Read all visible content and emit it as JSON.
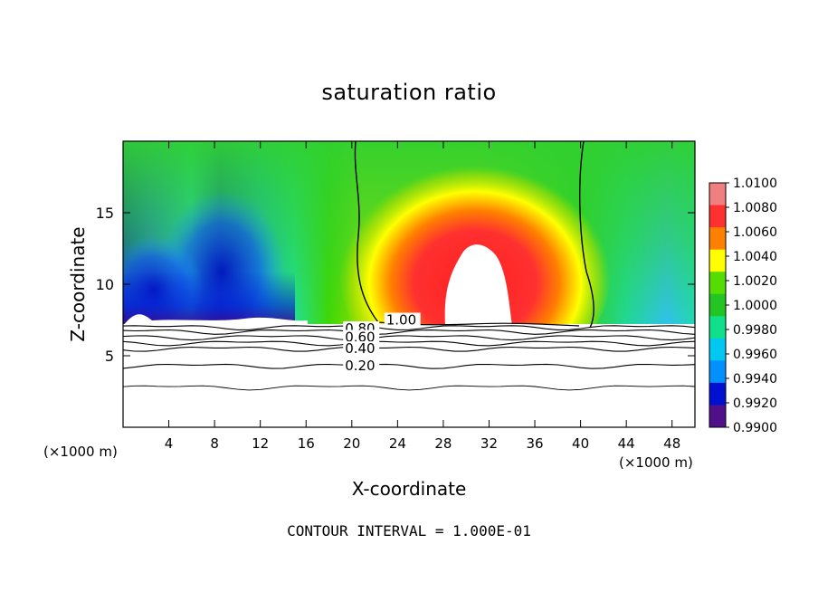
{
  "chart_data": {
    "type": "heatmap",
    "title": "saturation ratio",
    "xlabel": "X-coordinate",
    "ylabel": "Z-coordinate",
    "x_unit": "(×1000 m)",
    "xlim": [
      0,
      50
    ],
    "ylim": [
      0,
      20
    ],
    "x_ticks": [
      4,
      8,
      12,
      16,
      20,
      24,
      28,
      32,
      36,
      40,
      44,
      48
    ],
    "y_ticks": [
      5,
      10,
      15
    ],
    "colorbar": {
      "ticks": [
        "1.0100",
        "1.0080",
        "1.0060",
        "1.0040",
        "1.0020",
        "1.0000",
        "0.9980",
        "0.9960",
        "0.9940",
        "0.9920",
        "0.9900"
      ],
      "colors": [
        "#f08080",
        "#ff3030",
        "#ff8000",
        "#ffff00",
        "#55dd00",
        "#22c522",
        "#10e08a",
        "#00c8f0",
        "#0090ff",
        "#0010d0",
        "#50108a"
      ]
    },
    "contour_labels": [
      {
        "label": "1.00",
        "x": 23.0,
        "z": 7.5
      },
      {
        "label": "0.80",
        "x": 19.4,
        "z": 6.9
      },
      {
        "label": "0.60",
        "x": 19.4,
        "z": 6.3
      },
      {
        "label": "0.40",
        "x": 19.4,
        "z": 5.5
      },
      {
        "label": "0.20",
        "x": 19.4,
        "z": 4.3
      }
    ],
    "contour_interval_text": "CONTOUR INTERVAL = 1.000E-01"
  }
}
